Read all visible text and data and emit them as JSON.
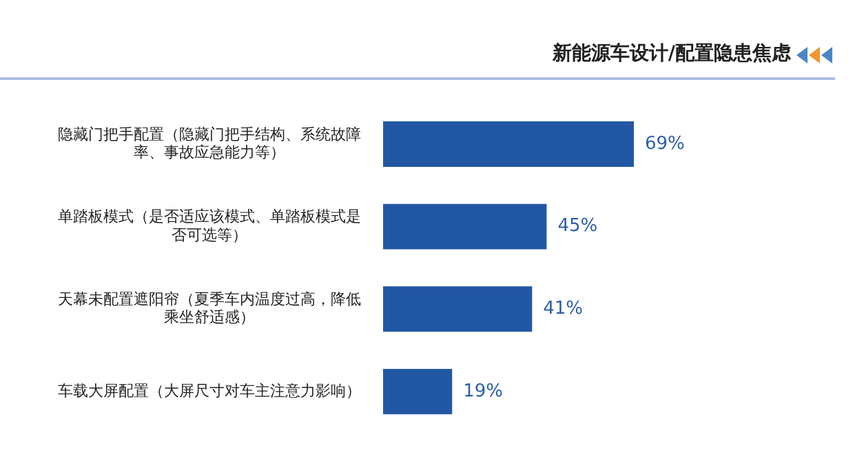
{
  "chart_data": {
    "type": "bar",
    "orientation": "horizontal",
    "title": "新能源车设计/配置隐患焦虑",
    "categories": [
      "隐藏门把手配置（隐藏门把手结构、系统故障率、事故应急能力等）",
      "单踏板模式（是否适应该模式、单踏板模式是否可选等）",
      "天幕未配置遮阳帘（夏季车内温度过高，降低乘坐舒适感）",
      "车载大屏配置（大屏尺寸对车主注意力影响）"
    ],
    "values": [
      69,
      45,
      41,
      19
    ],
    "value_labels": [
      "69%",
      "45%",
      "41%",
      "19%"
    ],
    "color": "#2257a4",
    "tick_labels": "y"
  }
}
